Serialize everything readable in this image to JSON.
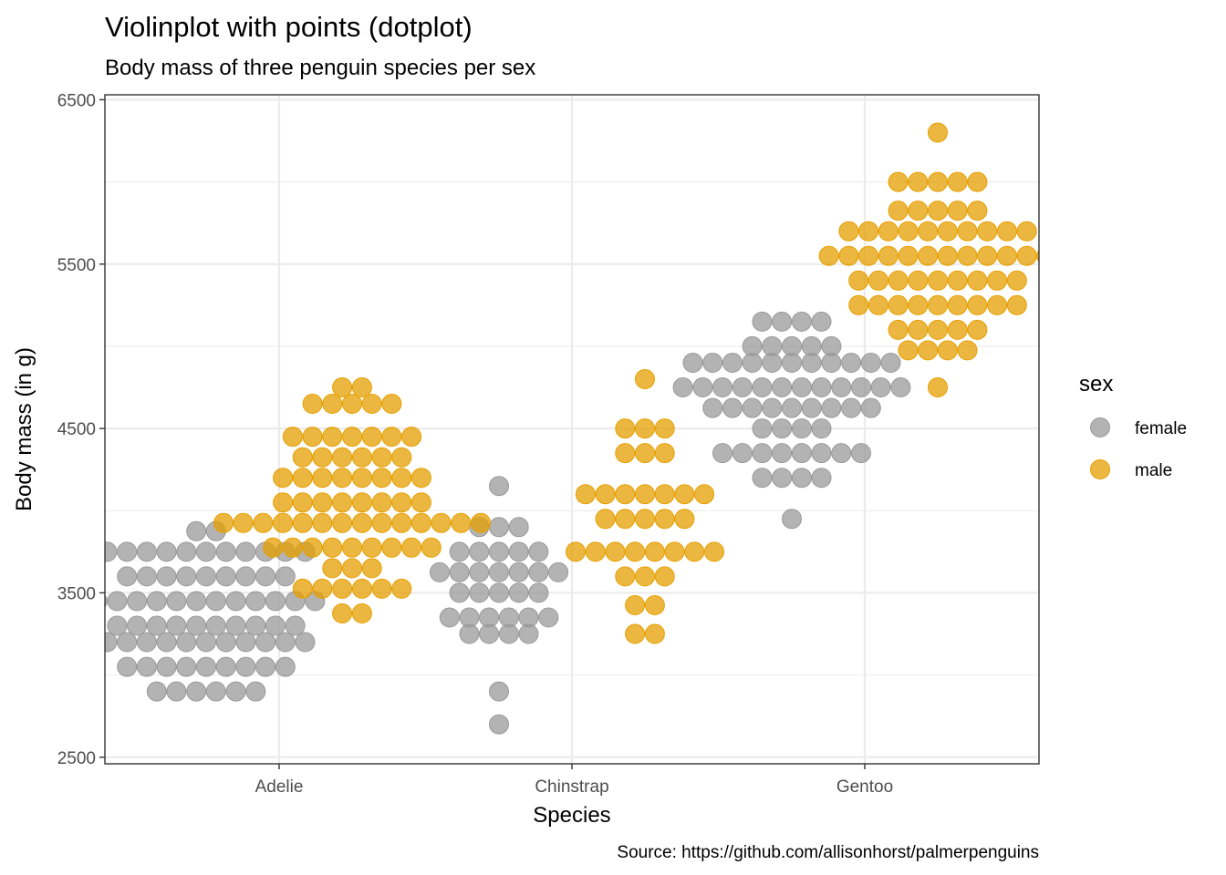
{
  "chart_data": {
    "type": "scatter",
    "subtype": "dotplot",
    "title": "Violinplot with points (dotplot)",
    "subtitle": "Body mass of three penguin species per sex",
    "xlabel": "Species",
    "ylabel": "Body mass (in g)",
    "caption": "Source: https://github.com/allisonhorst/palmerpenguins",
    "categories": [
      "Adelie",
      "Chinstrap",
      "Gentoo"
    ],
    "y_ticks": [
      2500,
      3500,
      4500,
      5500,
      6500
    ],
    "ylim": [
      2460,
      6530
    ],
    "grid": true,
    "legend": {
      "title": "sex",
      "placement": "right",
      "entries": [
        {
          "label": "female",
          "color": "#999999"
        },
        {
          "label": "male",
          "color": "#E69F00"
        }
      ]
    },
    "series": [
      {
        "name": "female",
        "color": "#999999",
        "groups": [
          {
            "category": "Adelie",
            "bins": [
              {
                "y": 2900,
                "count": 6
              },
              {
                "y": 3050,
                "count": 9
              },
              {
                "y": 3200,
                "count": 11
              },
              {
                "y": 3300,
                "count": 10
              },
              {
                "y": 3450,
                "count": 12
              },
              {
                "y": 3600,
                "count": 9
              },
              {
                "y": 3750,
                "count": 11
              },
              {
                "y": 3875,
                "count": 2
              }
            ]
          },
          {
            "category": "Chinstrap",
            "bins": [
              {
                "y": 2700,
                "count": 1
              },
              {
                "y": 2900,
                "count": 1
              },
              {
                "y": 3250,
                "count": 4
              },
              {
                "y": 3350,
                "count": 6
              },
              {
                "y": 3500,
                "count": 5
              },
              {
                "y": 3625,
                "count": 7
              },
              {
                "y": 3750,
                "count": 5
              },
              {
                "y": 3900,
                "count": 3
              },
              {
                "y": 4150,
                "count": 1
              }
            ]
          },
          {
            "category": "Gentoo",
            "bins": [
              {
                "y": 3950,
                "count": 1
              },
              {
                "y": 4200,
                "count": 4
              },
              {
                "y": 4350,
                "count": 8
              },
              {
                "y": 4500,
                "count": 4
              },
              {
                "y": 4625,
                "count": 9
              },
              {
                "y": 4750,
                "count": 12
              },
              {
                "y": 4900,
                "count": 11
              },
              {
                "y": 5000,
                "count": 5
              },
              {
                "y": 5150,
                "count": 4
              }
            ]
          }
        ]
      },
      {
        "name": "male",
        "color": "#E69F00",
        "groups": [
          {
            "category": "Adelie",
            "bins": [
              {
                "y": 3375,
                "count": 2
              },
              {
                "y": 3525,
                "count": 6
              },
              {
                "y": 3650,
                "count": 3
              },
              {
                "y": 3775,
                "count": 9
              },
              {
                "y": 3925,
                "count": 14
              },
              {
                "y": 4050,
                "count": 8
              },
              {
                "y": 4200,
                "count": 8
              },
              {
                "y": 4325,
                "count": 6
              },
              {
                "y": 4450,
                "count": 7
              },
              {
                "y": 4650,
                "count": 5
              },
              {
                "y": 4750,
                "count": 2
              }
            ]
          },
          {
            "category": "Chinstrap",
            "bins": [
              {
                "y": 3250,
                "count": 2
              },
              {
                "y": 3425,
                "count": 2
              },
              {
                "y": 3600,
                "count": 3
              },
              {
                "y": 3750,
                "count": 8
              },
              {
                "y": 3950,
                "count": 5
              },
              {
                "y": 4100,
                "count": 7
              },
              {
                "y": 4350,
                "count": 3
              },
              {
                "y": 4500,
                "count": 3
              },
              {
                "y": 4800,
                "count": 1
              }
            ]
          },
          {
            "category": "Gentoo",
            "bins": [
              {
                "y": 4750,
                "count": 1
              },
              {
                "y": 4975,
                "count": 4
              },
              {
                "y": 5100,
                "count": 5
              },
              {
                "y": 5250,
                "count": 9
              },
              {
                "y": 5400,
                "count": 9
              },
              {
                "y": 5550,
                "count": 12
              },
              {
                "y": 5700,
                "count": 10
              },
              {
                "y": 5825,
                "count": 5
              },
              {
                "y": 6000,
                "count": 5
              },
              {
                "y": 6300,
                "count": 1
              }
            ]
          }
        ]
      }
    ]
  }
}
